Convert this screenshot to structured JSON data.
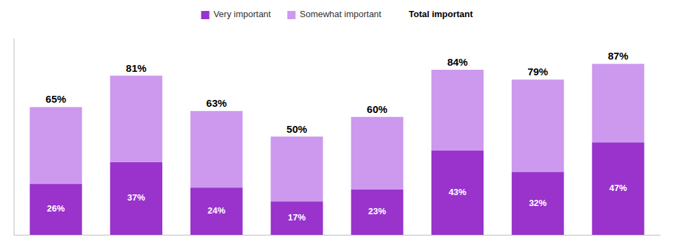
{
  "chart_data": {
    "type": "bar",
    "stacked": true,
    "data_labels": true,
    "tick_labels": false,
    "grid": false,
    "legend": "top",
    "categories": [
      null,
      null,
      null,
      null,
      null,
      null,
      null,
      null
    ],
    "series": [
      {
        "name": "Very important",
        "color": "#9933cc",
        "values": [
          26,
          37,
          24,
          17,
          23,
          43,
          32,
          47
        ],
        "value_labels": [
          "26%",
          "37%",
          "24%",
          "17%",
          "23%",
          "43%",
          "32%",
          "47%"
        ]
      },
      {
        "name": "Somewhat important",
        "color": "#cc99ee",
        "values": [
          39,
          44,
          39,
          33,
          37,
          41,
          47,
          40
        ]
      }
    ],
    "totals": {
      "name": "Total important",
      "values": [
        65,
        81,
        63,
        50,
        60,
        84,
        79,
        87
      ],
      "value_labels": [
        "65%",
        "81%",
        "63%",
        "50%",
        "60%",
        "84%",
        "79%",
        "87%"
      ]
    },
    "ylim": [
      0,
      100
    ]
  }
}
